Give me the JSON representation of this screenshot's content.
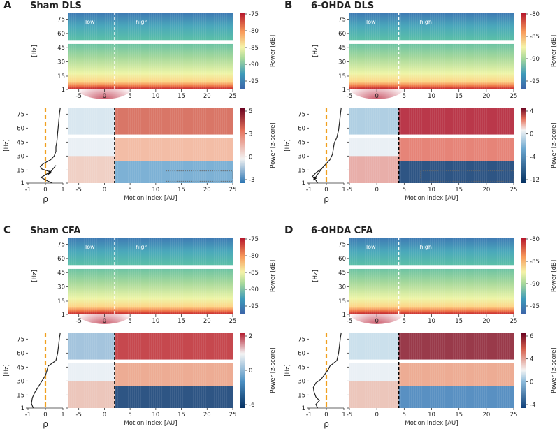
{
  "colors": {
    "zone_line_light": "#ffffff",
    "zone_line_dark": "#000000",
    "zero_line": "#f0a020",
    "curve": "#222222"
  },
  "panels": [
    {
      "letter": "A",
      "title": "Sham DLS",
      "zone_split": 2,
      "low_label": "low",
      "high_label": "high",
      "power": {
        "cbar_label": "Power [dB]",
        "ticks": [
          "-75",
          "-80",
          "-85",
          "-90",
          "-95"
        ]
      },
      "zscore": {
        "cbar_label": "Power [z-score]",
        "ticks": [
          "5",
          "3",
          "0",
          "-3"
        ]
      },
      "rho": {
        "xlabel": "ρ",
        "xticks": [
          "-1",
          "0",
          "1"
        ],
        "curve": [
          [
            1,
            0.4
          ],
          [
            3,
            0.15
          ],
          [
            7,
            -0.25
          ],
          [
            11,
            0.1
          ],
          [
            13,
            0.3
          ],
          [
            16,
            -0.2
          ],
          [
            19,
            -0.3
          ],
          [
            22,
            -0.1
          ],
          [
            26,
            0.3
          ],
          [
            30,
            0.5
          ],
          [
            35,
            0.6
          ],
          [
            40,
            0.6
          ],
          [
            45,
            0.65
          ],
          [
            55,
            0.7
          ],
          [
            65,
            0.75
          ],
          [
            75,
            0.8
          ],
          [
            82,
            0.85
          ]
        ],
        "arrow": true
      }
    },
    {
      "letter": "B",
      "title": "6-OHDA DLS",
      "zone_split": 4,
      "low_label": "low",
      "high_label": "high",
      "power": {
        "cbar_label": "Power [dB]",
        "ticks": [
          "-80",
          "-85",
          "-90",
          "-95"
        ]
      },
      "zscore": {
        "cbar_label": "Power [z-score]",
        "ticks": [
          "4",
          "0",
          "-4",
          "-12"
        ]
      },
      "rho": {
        "xlabel": "ρ",
        "xticks": [
          "-1",
          "0",
          "1"
        ],
        "curve": [
          [
            1,
            -0.5
          ],
          [
            4,
            -0.6
          ],
          [
            8,
            -0.8
          ],
          [
            12,
            -0.6
          ],
          [
            16,
            -0.3
          ],
          [
            20,
            -0.1
          ],
          [
            26,
            0.2
          ],
          [
            32,
            0.35
          ],
          [
            38,
            0.4
          ],
          [
            44,
            0.45
          ],
          [
            50,
            0.6
          ],
          [
            58,
            0.7
          ],
          [
            66,
            0.75
          ],
          [
            74,
            0.8
          ],
          [
            82,
            0.85
          ]
        ],
        "arrow": true
      }
    },
    {
      "letter": "C",
      "title": "Sham CFA",
      "zone_split": 2,
      "low_label": "low",
      "high_label": "high",
      "power": {
        "cbar_label": "Power [dB]",
        "ticks": [
          "-75",
          "-80",
          "-85",
          "-90",
          "-95"
        ]
      },
      "zscore": {
        "cbar_label": "Power [z-score]",
        "ticks": [
          "2",
          "0",
          "-6"
        ]
      },
      "rho": {
        "xlabel": "ρ",
        "xticks": [
          "-1",
          "0",
          "1"
        ],
        "curve": [
          [
            1,
            -0.7
          ],
          [
            6,
            -0.8
          ],
          [
            12,
            -0.75
          ],
          [
            18,
            -0.6
          ],
          [
            24,
            -0.4
          ],
          [
            30,
            -0.2
          ],
          [
            36,
            0
          ],
          [
            42,
            0.1
          ],
          [
            46,
            0.15
          ],
          [
            52,
            0.6
          ],
          [
            60,
            0.7
          ],
          [
            68,
            0.75
          ],
          [
            76,
            0.8
          ],
          [
            82,
            0.85
          ]
        ],
        "arrow": false
      }
    },
    {
      "letter": "D",
      "title": "6-OHDA CFA",
      "zone_split": 4,
      "low_label": "low",
      "high_label": "high",
      "power": {
        "cbar_label": "Power [dB]",
        "ticks": [
          "-80",
          "-85",
          "-90",
          "-95"
        ]
      },
      "zscore": {
        "cbar_label": "Power [z-score]",
        "ticks": [
          "6",
          "4",
          "0",
          "-4"
        ]
      },
      "rho": {
        "xlabel": "ρ",
        "xticks": [
          "-1",
          "0",
          "1"
        ],
        "curve": [
          [
            1,
            -0.5
          ],
          [
            5,
            -0.6
          ],
          [
            9,
            -0.4
          ],
          [
            13,
            -0.6
          ],
          [
            18,
            -0.7
          ],
          [
            23,
            -0.75
          ],
          [
            28,
            -0.6
          ],
          [
            32,
            -0.3
          ],
          [
            37,
            -0.1
          ],
          [
            42,
            0.1
          ],
          [
            46,
            0.2
          ],
          [
            52,
            0.6
          ],
          [
            60,
            0.7
          ],
          [
            68,
            0.75
          ],
          [
            76,
            0.8
          ],
          [
            82,
            0.85
          ]
        ],
        "arrow": false
      }
    }
  ],
  "shared": {
    "x_ticks": [
      "-5",
      "0",
      "5",
      "10",
      "15",
      "20",
      "25"
    ],
    "y_ticks": [
      "75",
      "60",
      "45",
      "30",
      "15",
      "1"
    ],
    "y_unit": "[Hz]",
    "motion_xlabel": "Motion index [AU]"
  },
  "chart_data": [
    {
      "type": "heatmap",
      "title": "Sham DLS",
      "xlabel": "Motion index [AU]",
      "ylabel": "[Hz]",
      "xlim": [
        -7,
        25
      ],
      "ylim": [
        1,
        82
      ],
      "x_ticks": [
        -5,
        0,
        5,
        10,
        15,
        20,
        25
      ],
      "y_ticks": [
        1,
        15,
        30,
        45,
        60,
        75
      ],
      "series": [
        {
          "name": "Power [dB]",
          "clim": [
            -98,
            -73
          ],
          "zone_split": 2
        },
        {
          "name": "Power [z-score]",
          "clim": [
            -4,
            5
          ],
          "zone_split": 2
        },
        {
          "name": "rho",
          "xlim": [
            -1,
            1
          ]
        }
      ]
    },
    {
      "type": "heatmap",
      "title": "6-OHDA DLS",
      "xlabel": "Motion index [AU]",
      "ylabel": "[Hz]",
      "xlim": [
        -5,
        25
      ],
      "ylim": [
        1,
        82
      ],
      "x_ticks": [
        -5,
        0,
        5,
        10,
        15,
        20,
        25
      ],
      "y_ticks": [
        1,
        15,
        30,
        45,
        60,
        75
      ],
      "series": [
        {
          "name": "Power [dB]",
          "clim": [
            -97,
            -79
          ],
          "zone_split": 4
        },
        {
          "name": "Power [z-score]",
          "clim": [
            -12,
            5
          ],
          "zone_split": 4
        },
        {
          "name": "rho",
          "xlim": [
            -1,
            1
          ]
        }
      ]
    },
    {
      "type": "heatmap",
      "title": "Sham CFA",
      "xlabel": "Motion index [AU]",
      "ylabel": "[Hz]",
      "xlim": [
        -7,
        25
      ],
      "ylim": [
        1,
        82
      ],
      "x_ticks": [
        -5,
        0,
        5,
        10,
        15,
        20,
        25
      ],
      "y_ticks": [
        1,
        15,
        30,
        45,
        60,
        75
      ],
      "series": [
        {
          "name": "Power [dB]",
          "clim": [
            -98,
            -73
          ],
          "zone_split": 2
        },
        {
          "name": "Power [z-score]",
          "clim": [
            -7,
            2.5
          ],
          "zone_split": 2
        },
        {
          "name": "rho",
          "xlim": [
            -1,
            1
          ]
        }
      ]
    },
    {
      "type": "heatmap",
      "title": "6-OHDA CFA",
      "xlabel": "Motion index [AU]",
      "ylabel": "[Hz]",
      "xlim": [
        -5,
        25
      ],
      "ylim": [
        1,
        82
      ],
      "x_ticks": [
        -5,
        0,
        5,
        10,
        15,
        20,
        25
      ],
      "y_ticks": [
        1,
        15,
        30,
        45,
        60,
        75
      ],
      "series": [
        {
          "name": "Power [dB]",
          "clim": [
            -97,
            -79
          ],
          "zone_split": 4
        },
        {
          "name": "Power [z-score]",
          "clim": [
            -6,
            6
          ],
          "zone_split": 4
        },
        {
          "name": "rho",
          "xlim": [
            -1,
            1
          ]
        }
      ]
    }
  ]
}
